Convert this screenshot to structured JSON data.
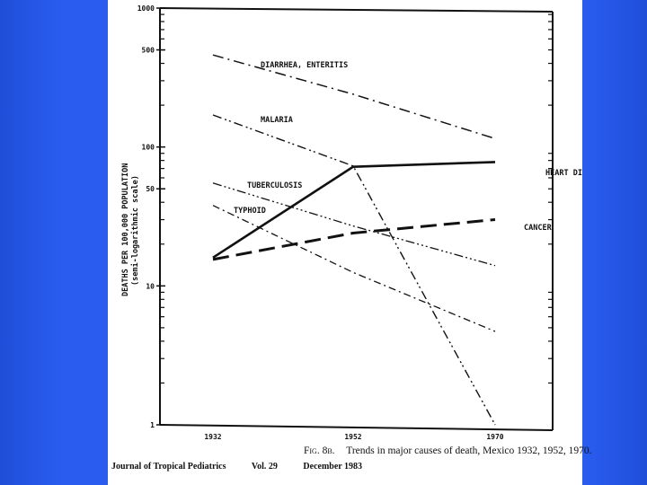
{
  "chart_data": {
    "type": "line",
    "ylabel": "DEATHS PER 100,000 POPULATION",
    "ylabel_sub": "(semi-logarithmic scale)",
    "yscale": "log",
    "ylim": [
      1,
      1000
    ],
    "yticks": [
      "1000",
      "500",
      "100",
      "50",
      "10",
      "1"
    ],
    "x": [
      1932,
      1952,
      1970
    ],
    "xticks": [
      "1932",
      "1952",
      "1970"
    ],
    "series": [
      {
        "name": "DIARRHEA, ENTERITIS",
        "values": [
          460,
          240,
          115
        ],
        "style": "dashdot"
      },
      {
        "name": "MALARIA",
        "values": [
          170,
          73,
          1
        ],
        "style": "dashdotdot"
      },
      {
        "name": "HEART DISEASE",
        "values": [
          16,
          72,
          78
        ],
        "style": "solid"
      },
      {
        "name": "TUBERCULOSIS",
        "values": [
          55,
          27,
          14
        ],
        "style": "dashdotdotdot"
      },
      {
        "name": "TYPHOID",
        "values": [
          38,
          12.5,
          4.7
        ],
        "style": "dashdot-thin"
      },
      {
        "name": "CANCER",
        "values": [
          15.5,
          24,
          30
        ],
        "style": "longdash"
      }
    ],
    "grid": false,
    "legend": "inline labels"
  },
  "caption": {
    "fig": "Fig. 8b.",
    "text": "Trends in major causes of death, Mexico 1932, 1952, 1970."
  },
  "footer": {
    "journal": "Journal of Tropical Pediatrics",
    "volume": "Vol. 29",
    "date": "December 1983"
  }
}
